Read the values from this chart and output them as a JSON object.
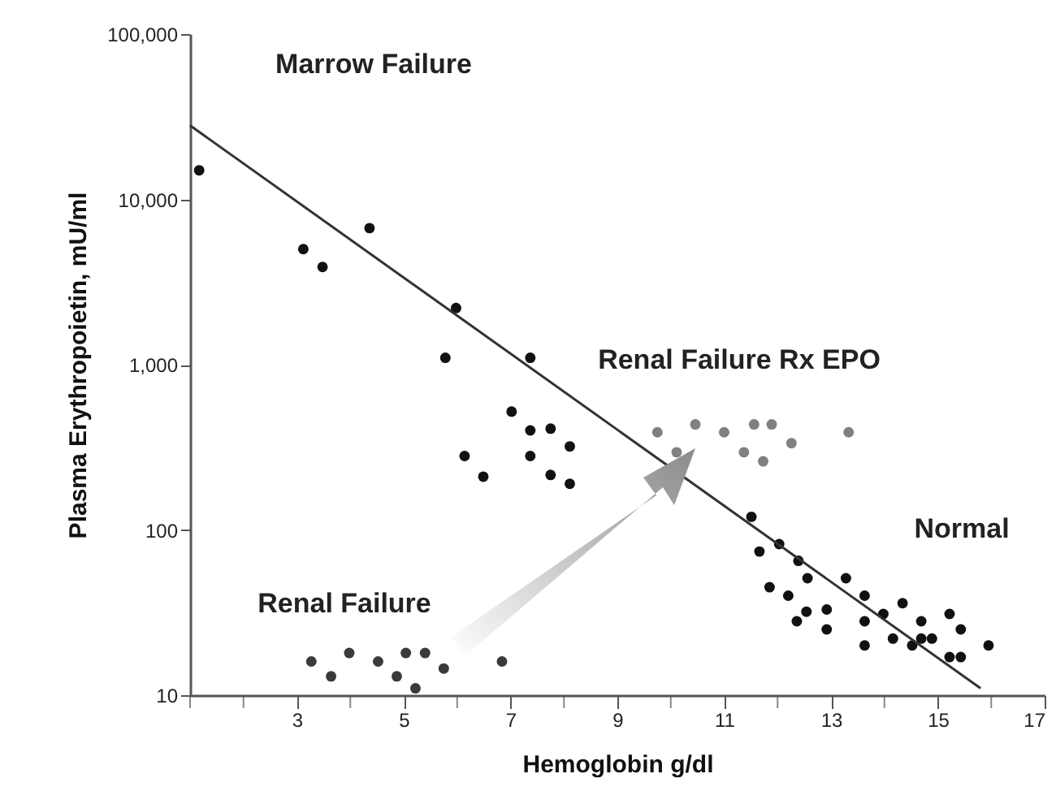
{
  "chart_data": {
    "type": "scatter",
    "xlabel": "Hemoglobin g/dl",
    "ylabel": "Plasma Erythropoietin, mU/ml",
    "log": "y",
    "grid": false,
    "xlim": [
      1,
      17
    ],
    "ylim": [
      10,
      100000
    ],
    "xticks": [
      {
        "value": 1,
        "label": null
      },
      {
        "value": 2,
        "label": null
      },
      3,
      {
        "value": 4,
        "label": null
      },
      5,
      {
        "value": 6,
        "label": null
      },
      7,
      {
        "value": 8,
        "label": null
      },
      9,
      {
        "value": 10,
        "label": null
      },
      11,
      {
        "value": 12,
        "label": null
      },
      13,
      {
        "value": 14,
        "label": null
      },
      15,
      {
        "value": 16,
        "label": null
      },
      17
    ],
    "yticks": [
      {
        "value": 10,
        "label": "10"
      },
      {
        "value": 100,
        "label": "100"
      },
      {
        "value": 1000,
        "label": "1,000"
      },
      {
        "value": 10000,
        "label": "10,000"
      },
      {
        "value": 100000,
        "label": "100,000"
      }
    ],
    "series": [
      {
        "color": "#111111",
        "marker": "circle",
        "x": [
          1.17,
          3.12,
          3.48,
          4.36,
          5.98,
          5.78,
          7.37,
          7.02,
          7.37,
          7.37,
          6.14,
          6.49,
          7.75,
          8.11,
          7.75,
          8.11
        ],
        "values": [
          15000,
          5000,
          3900,
          6700,
          2200,
          1100,
          1100,
          520,
          400,
          280,
          280,
          210,
          410,
          320,
          215,
          190
        ]
      },
      {
        "color": "#3a3a3a",
        "marker": "circle",
        "x": [
          3.27,
          3.64,
          3.98,
          4.52,
          4.87,
          5.04,
          5.22,
          5.4,
          5.75,
          6.84
        ],
        "values": [
          16,
          13,
          18,
          16,
          13,
          18,
          11,
          18,
          14.5,
          16
        ]
      },
      {
        "color": "#808080",
        "marker": "circle",
        "x": [
          9.75,
          10.11,
          10.46,
          11.0,
          11.37,
          11.56,
          11.73,
          11.89,
          12.26,
          13.33
        ],
        "values": [
          390,
          295,
          435,
          390,
          295,
          435,
          260,
          435,
          335,
          390
        ]
      },
      {
        "color": "#111111",
        "marker": "circle",
        "x": [
          11.51,
          12.03,
          11.66,
          12.39,
          12.56,
          13.28,
          11.85,
          12.2,
          13.63,
          12.92,
          14.34,
          13.98,
          12.54,
          12.36,
          13.63,
          15.22,
          14.69,
          12.92,
          15.43,
          14.16,
          14.69,
          14.89,
          13.63,
          14.52,
          15.22,
          15.43,
          15.95
        ],
        "values": [
          120,
          82,
          74,
          65,
          51,
          51,
          45,
          40,
          40,
          33,
          36,
          31,
          32,
          28,
          28,
          31,
          28,
          25,
          25,
          22,
          22,
          22,
          20,
          20,
          17,
          17,
          20
        ]
      },
      {
        "type": "line",
        "color": "#333333",
        "x": [
          1,
          15.8
        ],
        "values": [
          28000,
          11
        ]
      }
    ],
    "annotations": [
      "Marrow Failure",
      "Renal Failure",
      "Renal Failure  Rx EPO",
      "Normal"
    ]
  }
}
